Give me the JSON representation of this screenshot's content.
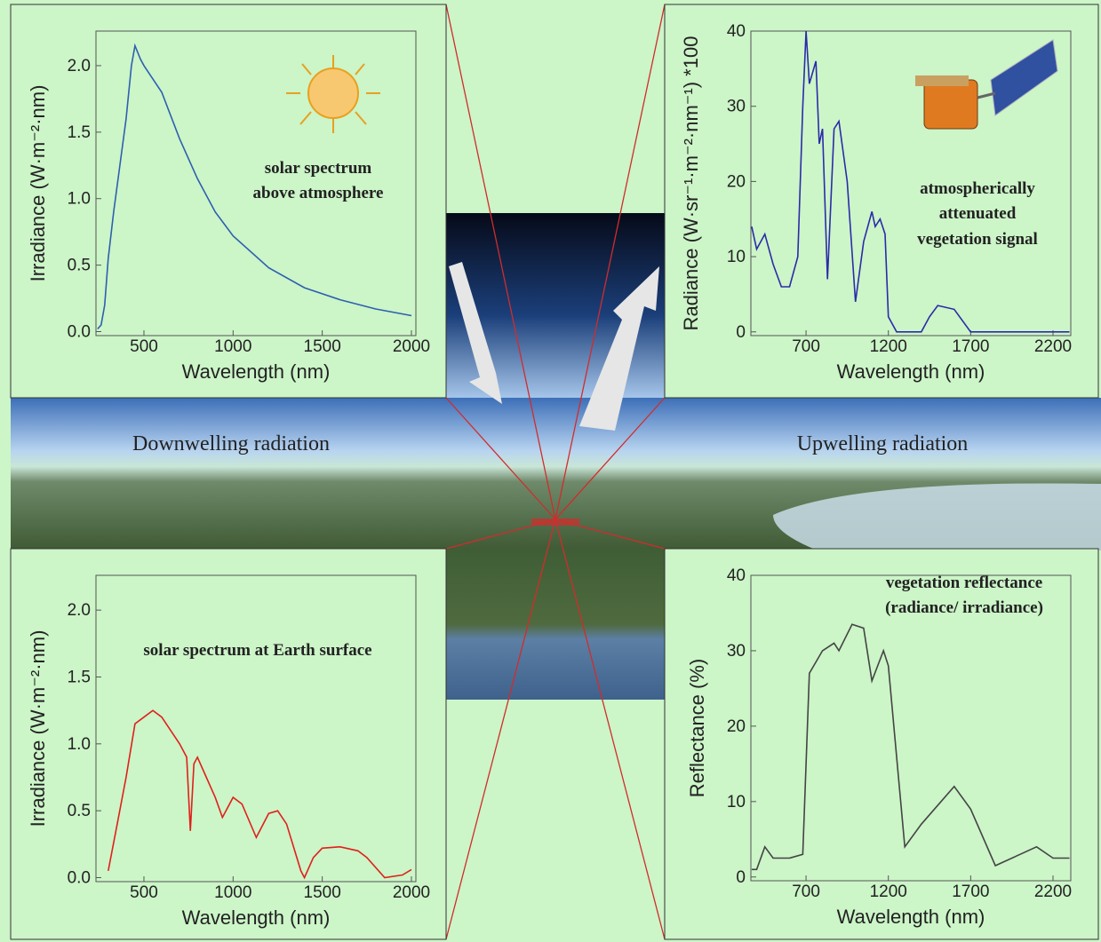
{
  "scene": {
    "left_label": "Downwelling radiation",
    "right_label": "Upwelling radiation"
  },
  "chart_data": [
    {
      "type": "line",
      "annotation": [
        "solar spectrum",
        "above atmosphere"
      ],
      "xlabel": "Wavelength (nm)",
      "ylabel": "Irradiance (W·m⁻²·nm)",
      "x": [
        240,
        260,
        280,
        300,
        330,
        360,
        400,
        430,
        450,
        480,
        500,
        550,
        600,
        700,
        800,
        900,
        1000,
        1200,
        1400,
        1600,
        1800,
        2000
      ],
      "values": [
        0.02,
        0.05,
        0.2,
        0.55,
        0.9,
        1.2,
        1.6,
        2.0,
        2.15,
        2.05,
        2.0,
        1.9,
        1.8,
        1.45,
        1.15,
        0.9,
        0.72,
        0.48,
        0.33,
        0.24,
        0.17,
        0.12
      ],
      "color": "#2e5fb0",
      "xlim": [
        231,
        2025
      ],
      "ylim": [
        -0.03,
        2.26
      ],
      "xticks": [
        500,
        1000,
        1500,
        2000
      ],
      "yticks": [
        {
          "value": 0,
          "label": "0.0"
        },
        0.5,
        {
          "value": 1,
          "label": "1.0"
        },
        1.5,
        {
          "value": 2,
          "label": "2.0"
        }
      ]
    },
    {
      "type": "line",
      "annotation": [
        "atmospherically",
        "attenuated",
        "vegetation signal"
      ],
      "xlabel": "Wavelength (nm)",
      "ylabel": "Radiance (W·sr⁻¹·m⁻²·nm⁻¹) *100",
      "x": [
        370,
        400,
        450,
        500,
        550,
        600,
        650,
        680,
        700,
        720,
        760,
        780,
        800,
        830,
        870,
        900,
        950,
        1000,
        1050,
        1100,
        1120,
        1150,
        1180,
        1200,
        1250,
        1400,
        1450,
        1500,
        1600,
        1700,
        1800,
        2000,
        2200,
        2300
      ],
      "values": [
        14,
        11,
        13,
        9,
        6,
        6,
        10,
        30,
        40,
        33,
        36,
        25,
        27,
        7,
        27,
        28,
        20,
        4,
        12,
        16,
        14,
        15,
        13,
        2,
        0,
        0,
        2,
        3.5,
        3,
        0,
        0,
        0,
        0,
        0
      ],
      "color": "#2b2ba8",
      "xlim": [
        365,
        2308
      ],
      "ylim": [
        -0.5,
        40
      ],
      "xticks": [
        700,
        1200,
        1700,
        2200
      ],
      "yticks": [
        0,
        10,
        20,
        30,
        40
      ]
    },
    {
      "type": "line",
      "annotation": [
        "solar spectrum at Earth surface"
      ],
      "xlabel": "Wavelength (nm)",
      "ylabel": "Irradiance (W·m⁻²·nm)",
      "x": [
        300,
        350,
        400,
        450,
        500,
        550,
        600,
        650,
        700,
        740,
        760,
        780,
        800,
        850,
        900,
        940,
        1000,
        1050,
        1130,
        1200,
        1250,
        1300,
        1380,
        1400,
        1450,
        1500,
        1600,
        1700,
        1750,
        1850,
        1950,
        2000
      ],
      "values": [
        0.05,
        0.4,
        0.75,
        1.15,
        1.2,
        1.25,
        1.2,
        1.1,
        1.0,
        0.9,
        0.35,
        0.85,
        0.9,
        0.75,
        0.6,
        0.45,
        0.6,
        0.55,
        0.3,
        0.48,
        0.5,
        0.4,
        0.05,
        0.0,
        0.15,
        0.22,
        0.23,
        0.2,
        0.15,
        0.0,
        0.02,
        0.06
      ],
      "color": "#e0201c",
      "xlim": [
        231,
        2025
      ],
      "ylim": [
        -0.03,
        2.26
      ],
      "xticks": [
        500,
        1000,
        1500,
        2000
      ],
      "yticks": [
        {
          "value": 0,
          "label": "0.0"
        },
        0.5,
        {
          "value": 1,
          "label": "1.0"
        },
        1.5,
        {
          "value": 2,
          "label": "2.0"
        }
      ]
    },
    {
      "type": "line",
      "annotation": [
        "vegetation reflectance",
        "(radiance/ irradiance)"
      ],
      "xlabel": "Wavelength (nm)",
      "ylabel": "Reflectance (%)",
      "x": [
        370,
        400,
        450,
        500,
        600,
        680,
        720,
        800,
        870,
        900,
        980,
        1050,
        1100,
        1170,
        1200,
        1300,
        1400,
        1600,
        1700,
        1850,
        2000,
        2100,
        2200,
        2300
      ],
      "values": [
        1,
        1,
        4,
        2.5,
        2.5,
        3,
        27,
        30,
        31,
        30,
        33.5,
        33,
        26,
        30,
        28,
        4,
        7,
        12,
        9,
        1.5,
        3,
        4,
        2.5,
        2.5
      ],
      "color": "#444444",
      "xlim": [
        365,
        2308
      ],
      "ylim": [
        -0.5,
        40
      ],
      "xticks": [
        700,
        1200,
        1700,
        2200
      ],
      "yticks": [
        0,
        10,
        20,
        30,
        40
      ]
    }
  ]
}
